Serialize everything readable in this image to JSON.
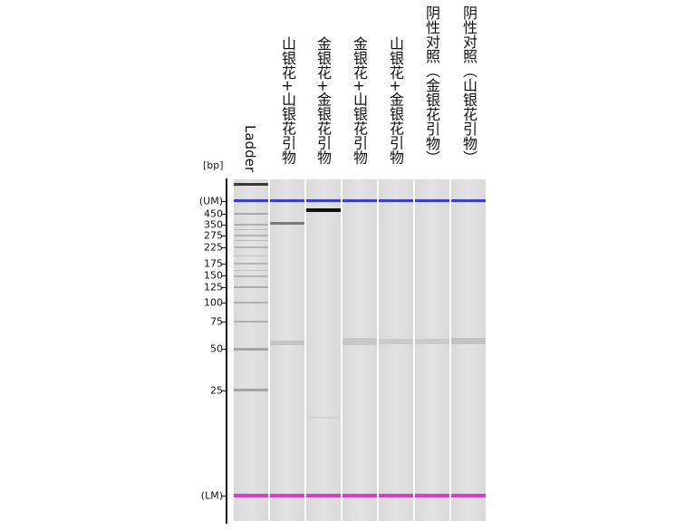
{
  "unit_label": "[bp]",
  "upper_marker_label": "(UM)",
  "lower_marker_label": "(LM)",
  "size_labels": [
    "450",
    "350",
    "275",
    "225",
    "175",
    "150",
    "125",
    "100",
    "75",
    "50",
    "25"
  ],
  "lanes": [
    {
      "label": "Ladder"
    },
    {
      "label": "山银花+山银花引物"
    },
    {
      "label": "金银花+金银花引物"
    },
    {
      "label": "金银花+山银花引物"
    },
    {
      "label": "山银花+金银花引物"
    },
    {
      "label": "阴性对照（金银花引物）"
    },
    {
      "label": "阴性对照（山银花引物）"
    }
  ],
  "colors": {
    "upper_marker": "#3a3fc8",
    "lower_marker": "#d23fcf",
    "axis": "#111111"
  }
}
